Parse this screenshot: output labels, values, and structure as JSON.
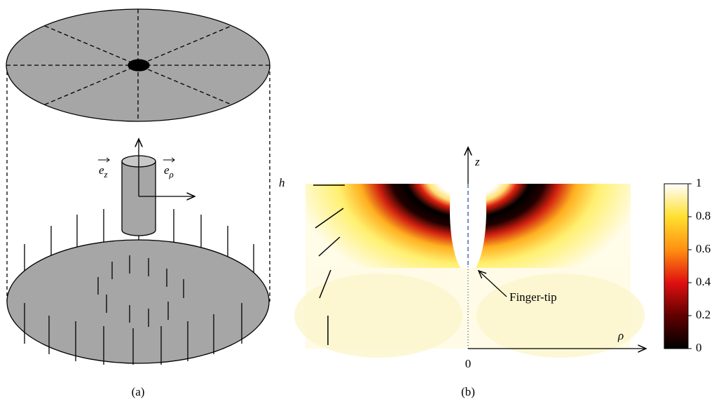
{
  "panel_a": {
    "caption": "(a)",
    "ez": {
      "symbol": "e",
      "subscript": "z"
    },
    "erho": {
      "symbol": "e",
      "subscript": "ρ"
    }
  },
  "panel_b": {
    "caption": "(b)",
    "height_label": "h",
    "z_label": "z",
    "rho_label": "ρ",
    "origin_label": "0",
    "annotation": "Finger-tip"
  },
  "colorbar": {
    "lim": [
      0,
      1
    ],
    "ticks": [
      0,
      0.2,
      0.4,
      0.6,
      0.8,
      1
    ]
  }
}
